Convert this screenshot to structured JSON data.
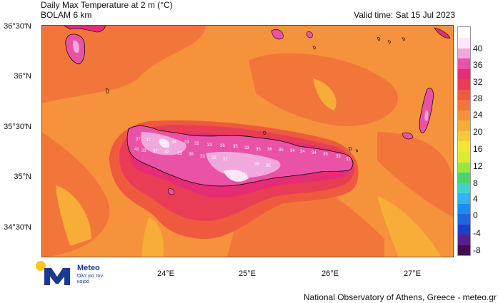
{
  "header": {
    "title": "Daily Max Temperature at 2 m (°C)",
    "model": "BOLAM 6 km",
    "valid_time": "Valid time: Sat 15 Jul 2023"
  },
  "map": {
    "lat_labels": [
      "36°30'N",
      "36°N",
      "35°30'N",
      "35°N",
      "34°30'N"
    ],
    "lon_labels": [
      "24°E",
      "25°E",
      "26°E",
      "27°E"
    ],
    "value_labels": [
      "37",
      "32",
      "39",
      "34",
      "33",
      "32",
      "33",
      "36",
      "35",
      "33",
      "35",
      "36",
      "35",
      "34",
      "34",
      "34",
      "35",
      "33",
      "32",
      "33",
      "37",
      "37",
      "33",
      "41",
      "36",
      "41",
      "33",
      "33",
      "32",
      "35",
      "35"
    ]
  },
  "colorbar": {
    "ticks": [
      "40",
      "36",
      "32",
      "28",
      "24",
      "20",
      "16",
      "12",
      "8",
      "4",
      "0",
      "-4",
      "-8"
    ],
    "colors": [
      "#440a52",
      "#5a1f8f",
      "#1f3ec9",
      "#1e66df",
      "#1e8cf0",
      "#33b3f0",
      "#44d2c8",
      "#4dd36d",
      "#9ee53a",
      "#d8ec33",
      "#f6e533",
      "#f8c93a",
      "#f7ad38",
      "#f5923b",
      "#f2763a",
      "#ef5a3f",
      "#e93d55",
      "#e62c74",
      "#ea52a6",
      "#f1a9dd",
      "#fde7f8",
      "#ffffff"
    ]
  },
  "logo": {
    "name": "Meteo",
    "tagline": "Όλα για τον καιρό"
  },
  "footer": {
    "credit": "National Observatory of Athens, Greece - meteo.gr"
  }
}
